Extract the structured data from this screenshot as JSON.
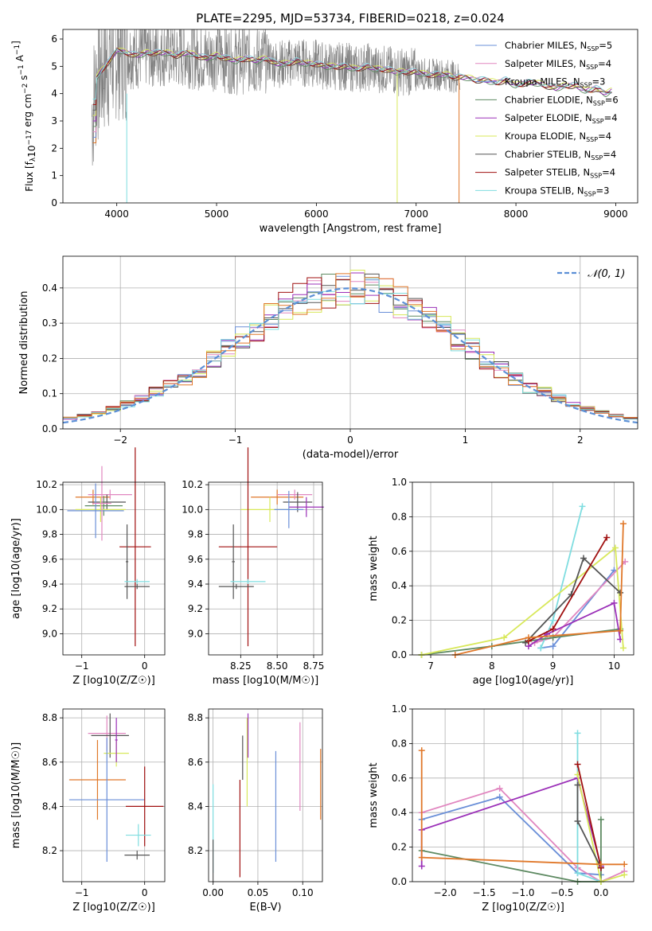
{
  "title": "PLATE=2295, MJD=53734, FIBERID=0218, z=0.024",
  "colors": {
    "blue": "#6a8fd8",
    "pink": "#e187c0",
    "steel": "#6a8fd8",
    "green": "#5e8a62",
    "purple": "#9b30b8",
    "yellow": "#d8e85a",
    "darkgrey": "#555555",
    "red": "#a01010",
    "cyan": "#7fdde0",
    "orange": "#e0782a",
    "grey": "#808080",
    "dashed": "#5b8fd6"
  },
  "chart_data": [
    {
      "id": "spectrum",
      "type": "line",
      "xlabel": "wavelength [Angstrom, rest frame]",
      "ylabel": "Flux [f_λ 10^-17 erg cm^-2 s^-1 A^-1]",
      "xlim": [
        3460,
        9220
      ],
      "ylim": [
        0,
        6.35
      ],
      "xticks": [
        "4000",
        "5000",
        "6000",
        "7000",
        "8000",
        "9000"
      ],
      "yticks": [
        "0",
        "1",
        "2",
        "3",
        "4",
        "5",
        "6"
      ],
      "legend_position": "right",
      "legend": [
        {
          "name": "Chabrier MILES, N_SSP=5",
          "color": "#6a8fd8"
        },
        {
          "name": "Salpeter MILES, N_SSP=4",
          "color": "#e187c0"
        },
        {
          "name": "Kroupa MILES, N_SSP=3",
          "color": "#6a8fd8"
        },
        {
          "name": "Chabrier ELODIE, N_SSP=6",
          "color": "#5e8a62"
        },
        {
          "name": "Salpeter ELODIE, N_SSP=4",
          "color": "#9b30b8"
        },
        {
          "name": "Kroupa ELODIE, N_SSP=4",
          "color": "#d8e85a"
        },
        {
          "name": "Chabrier STELIB, N_SSP=4",
          "color": "#555555"
        },
        {
          "name": "Salpeter STELIB, N_SSP=4",
          "color": "#a01010"
        },
        {
          "name": "Kroupa STELIB, N_SSP=3",
          "color": "#7fdde0"
        }
      ],
      "model_curve": {
        "x": [
          3750,
          3800,
          3900,
          3950,
          4000,
          4100,
          4200,
          4300,
          4400,
          4500,
          4600,
          4700,
          4800,
          4900,
          5000,
          5100,
          5200,
          5300,
          5400,
          5500,
          5600,
          5700,
          5800,
          5900,
          6000,
          6100,
          6200,
          6300,
          6400,
          6500,
          6600,
          6700,
          6800,
          6900,
          7000,
          7100,
          7200,
          7300,
          7400,
          7500,
          7600,
          7700,
          7800,
          7900,
          8000,
          8100,
          8200,
          8300,
          8400,
          8500,
          8600,
          8700,
          8800,
          8900,
          8960
        ],
        "y": [
          3.2,
          4.6,
          5.1,
          5.3,
          5.6,
          5.5,
          5.4,
          5.5,
          5.5,
          5.5,
          5.4,
          5.5,
          5.4,
          5.3,
          5.4,
          5.3,
          5.2,
          5.3,
          5.2,
          5.3,
          5.1,
          5.1,
          5.2,
          5.1,
          5.1,
          5.0,
          5.0,
          5.0,
          4.9,
          5.0,
          4.9,
          4.9,
          4.8,
          4.8,
          4.8,
          4.7,
          4.7,
          4.7,
          4.6,
          4.6,
          4.5,
          4.5,
          4.4,
          4.5,
          4.3,
          4.4,
          4.4,
          4.3,
          4.2,
          4.3,
          4.3,
          4.1,
          4.2,
          4.0,
          4.1
        ]
      }
    },
    {
      "id": "residuals",
      "type": "histogram",
      "xlabel": "(data-model)/error",
      "ylabel": "Normed distribution",
      "xlim": [
        -2.5,
        2.5
      ],
      "ylim": [
        0,
        0.49
      ],
      "xticks": [
        "−2",
        "−1",
        "0",
        "1",
        "2"
      ],
      "yticks": [
        "0.0",
        "0.1",
        "0.2",
        "0.3",
        "0.4"
      ],
      "legend": [
        {
          "name": "𝒩(0, 1)",
          "style": "dashed"
        }
      ],
      "legend_position": "top-right",
      "gaussian": {
        "mu": 0,
        "sigma": 1
      }
    },
    {
      "id": "age_vs_Z",
      "type": "errorbar",
      "xlabel": "Z [log10(Z/Z☉)]",
      "ylabel": "age  [log10(age/yr)]",
      "xlim": [
        -1.3,
        0.32
      ],
      "ylim": [
        8.83,
        10.22
      ],
      "xticks": [
        "−1",
        "0"
      ],
      "yticks": [
        "9.0",
        "9.2",
        "9.4",
        "9.6",
        "9.8",
        "10.0",
        "10.2"
      ],
      "points": [
        {
          "x": -0.82,
          "y": 10.1,
          "xerr": 0.28,
          "yerr": 0.06,
          "color": "#e0782a"
        },
        {
          "x": -0.55,
          "y": 10.12,
          "xerr": 0.35,
          "yerr": 0.04,
          "color": "#e187c0"
        },
        {
          "x": -0.6,
          "y": 10.06,
          "xerr": 0.3,
          "yerr": 0.06,
          "color": "#555555"
        },
        {
          "x": -0.65,
          "y": 10.03,
          "xerr": 0.3,
          "yerr": 0.08,
          "color": "#5e8a62"
        },
        {
          "x": -0.7,
          "y": 10.0,
          "xerr": 0.4,
          "yerr": 0.1,
          "color": "#d8e85a"
        },
        {
          "x": -0.78,
          "y": 9.99,
          "xerr": 0.45,
          "yerr": 0.22,
          "color": "#6a8fd8"
        },
        {
          "x": -0.68,
          "y": 10.05,
          "xerr": 0.15,
          "yerr": 0.3,
          "color": "#e187c0"
        },
        {
          "x": -0.15,
          "y": 9.7,
          "xerr": 0.25,
          "yerr": 0.8,
          "color": "#a01010"
        },
        {
          "x": -0.28,
          "y": 9.58,
          "xerr": 0.02,
          "yerr": 0.3,
          "color": "#555555"
        },
        {
          "x": -0.12,
          "y": 9.42,
          "xerr": 0.2,
          "yerr": 0.02,
          "color": "#7fdde0"
        },
        {
          "x": -0.12,
          "y": 9.38,
          "xerr": 0.2,
          "yerr": 0.02,
          "color": "#555555"
        }
      ]
    },
    {
      "id": "age_vs_mass",
      "type": "errorbar",
      "xlabel": "mass [log10(M/M☉)]",
      "ylabel": "",
      "xlim": [
        8.03,
        8.81
      ],
      "ylim": [
        8.83,
        10.22
      ],
      "xticks": [
        "8.25",
        "8.50",
        "8.75"
      ],
      "yticks": [
        "9.0",
        "9.2",
        "9.4",
        "9.6",
        "9.8",
        "10.0",
        "10.2"
      ],
      "points": [
        {
          "x": 8.5,
          "y": 10.1,
          "xerr": 0.18,
          "yerr": 0.06,
          "color": "#e0782a"
        },
        {
          "x": 8.62,
          "y": 10.12,
          "xerr": 0.12,
          "yerr": 0.04,
          "color": "#e187c0"
        },
        {
          "x": 8.64,
          "y": 10.06,
          "xerr": 0.1,
          "yerr": 0.08,
          "color": "#555555"
        },
        {
          "x": 8.7,
          "y": 10.02,
          "xerr": 0.12,
          "yerr": 0.08,
          "color": "#9b30b8"
        },
        {
          "x": 8.45,
          "y": 10.0,
          "xerr": 0.2,
          "yerr": 0.1,
          "color": "#d8e85a"
        },
        {
          "x": 8.58,
          "y": 10.0,
          "xerr": 0.1,
          "yerr": 0.15,
          "color": "#6a8fd8"
        },
        {
          "x": 8.3,
          "y": 9.7,
          "xerr": 0.2,
          "yerr": 0.8,
          "color": "#a01010"
        },
        {
          "x": 8.2,
          "y": 9.58,
          "xerr": 0.01,
          "yerr": 0.3,
          "color": "#555555"
        },
        {
          "x": 8.22,
          "y": 9.38,
          "xerr": 0.12,
          "yerr": 0.02,
          "color": "#555555"
        },
        {
          "x": 8.3,
          "y": 9.42,
          "xerr": 0.12,
          "yerr": 0.02,
          "color": "#7fdde0"
        }
      ]
    },
    {
      "id": "mass_weight_vs_age",
      "type": "line",
      "xlabel": "age  [log10(age/yr)]",
      "ylabel": "mass weight",
      "xlim": [
        6.7,
        10.32
      ],
      "ylim": [
        0,
        1.0
      ],
      "xticks": [
        "7",
        "8",
        "9",
        "10"
      ],
      "yticks": [
        "0.0",
        "0.2",
        "0.4",
        "0.6",
        "0.8",
        "1.0"
      ],
      "series": [
        {
          "color": "#6a8fd8",
          "x": [
            8.8,
            9.0,
            10.0
          ],
          "y": [
            0.04,
            0.05,
            0.49
          ]
        },
        {
          "color": "#e187c0",
          "x": [
            8.7,
            9.0,
            10.18
          ],
          "y": [
            0.07,
            0.1,
            0.54
          ]
        },
        {
          "color": "#7fdde0",
          "x": [
            8.8,
            9.0,
            9.48
          ],
          "y": [
            0.04,
            0.2,
            0.86
          ]
        },
        {
          "color": "#5e8a62",
          "x": [
            6.85,
            8.0,
            9.0,
            10.1
          ],
          "y": [
            0.0,
            0.05,
            0.1,
            0.15
          ]
        },
        {
          "color": "#9b30b8",
          "x": [
            8.6,
            8.9,
            10.0,
            10.1
          ],
          "y": [
            0.05,
            0.12,
            0.3,
            0.09
          ]
        },
        {
          "color": "#d8e85a",
          "x": [
            6.85,
            8.2,
            10.02,
            10.15
          ],
          "y": [
            0.0,
            0.1,
            0.62,
            0.04
          ]
        },
        {
          "color": "#555555",
          "x": [
            8.55,
            9.3,
            9.5,
            10.1
          ],
          "y": [
            0.07,
            0.35,
            0.56,
            0.36
          ]
        },
        {
          "color": "#a01010",
          "x": [
            8.6,
            9.0,
            9.88
          ],
          "y": [
            0.08,
            0.15,
            0.68
          ]
        },
        {
          "color": "#e0782a",
          "x": [
            7.4,
            8.6,
            10.1,
            10.15
          ],
          "y": [
            0.0,
            0.1,
            0.14,
            0.76
          ]
        }
      ]
    },
    {
      "id": "mass_vs_Z",
      "type": "errorbar",
      "xlabel": "Z [log10(Z/Z☉)]",
      "ylabel": "mass [log10(M/M☉)]",
      "xlim": [
        -1.3,
        0.32
      ],
      "ylim": [
        8.06,
        8.84
      ],
      "xticks": [
        "−1",
        "0"
      ],
      "yticks": [
        "8.2",
        "8.4",
        "8.6",
        "8.8"
      ],
      "points": [
        {
          "x": -0.6,
          "y": 8.73,
          "xerr": 0.3,
          "yerr": 0.08,
          "color": "#e187c0"
        },
        {
          "x": -0.55,
          "y": 8.72,
          "xerr": 0.3,
          "yerr": 0.1,
          "color": "#555555"
        },
        {
          "x": -0.45,
          "y": 8.64,
          "xerr": 0.2,
          "yerr": 0.06,
          "color": "#d8e85a"
        },
        {
          "x": -0.75,
          "y": 8.52,
          "xerr": 0.45,
          "yerr": 0.18,
          "color": "#e0782a"
        },
        {
          "x": -0.6,
          "y": 8.43,
          "xerr": 0.6,
          "yerr": 0.28,
          "color": "#6a8fd8"
        },
        {
          "x": 0.0,
          "y": 8.4,
          "xerr": 0.3,
          "yerr": 0.18,
          "color": "#a01010"
        },
        {
          "x": -0.1,
          "y": 8.27,
          "xerr": 0.2,
          "yerr": 0.05,
          "color": "#7fdde0"
        },
        {
          "x": -0.12,
          "y": 8.18,
          "xerr": 0.2,
          "yerr": 0.02,
          "color": "#555555"
        },
        {
          "x": -0.45,
          "y": 8.7,
          "xerr": 0.02,
          "yerr": 0.1,
          "color": "#9b30b8"
        }
      ]
    },
    {
      "id": "mass_vs_ebv",
      "type": "errorbar",
      "xlabel": "E(B-V)",
      "ylabel": "",
      "xlim": [
        -0.005,
        0.122
      ],
      "ylim": [
        8.06,
        8.84
      ],
      "xticks": [
        "0.00",
        "0.05",
        "0.10"
      ],
      "yticks": [
        "8.2",
        "8.4",
        "8.6",
        "8.8"
      ],
      "points": [
        {
          "x": 0.0,
          "y": 8.3,
          "xerr": 0,
          "yerr": 0.2,
          "color": "#7fdde0"
        },
        {
          "x": 0.0,
          "y": 8.15,
          "xerr": 0,
          "yerr": 0.1,
          "color": "#555555"
        },
        {
          "x": 0.03,
          "y": 8.3,
          "xerr": 0,
          "yerr": 0.22,
          "color": "#a01010"
        },
        {
          "x": 0.033,
          "y": 8.62,
          "xerr": 0,
          "yerr": 0.1,
          "color": "#555555"
        },
        {
          "x": 0.038,
          "y": 8.6,
          "xerr": 0,
          "yerr": 0.2,
          "color": "#d8e85a"
        },
        {
          "x": 0.039,
          "y": 8.72,
          "xerr": 0,
          "yerr": 0.1,
          "color": "#9b30b8"
        },
        {
          "x": 0.07,
          "y": 8.4,
          "xerr": 0,
          "yerr": 0.25,
          "color": "#6a8fd8"
        },
        {
          "x": 0.097,
          "y": 8.58,
          "xerr": 0,
          "yerr": 0.2,
          "color": "#e187c0"
        },
        {
          "x": 0.12,
          "y": 8.5,
          "xerr": 0,
          "yerr": 0.16,
          "color": "#e0782a"
        }
      ]
    },
    {
      "id": "mass_weight_vs_Z",
      "type": "line",
      "xlabel": "Z [log10(Z/Z☉)]",
      "ylabel": "mass weight",
      "xlim": [
        -2.42,
        0.42
      ],
      "ylim": [
        0,
        1.0
      ],
      "xticks": [
        "−2.0",
        "−1.5",
        "−1.0",
        "−0.5",
        "0.0"
      ],
      "yticks": [
        "0.0",
        "0.2",
        "0.4",
        "0.6",
        "0.8",
        "1.0"
      ],
      "series": [
        {
          "color": "#6a8fd8",
          "x": [
            -2.3,
            -1.3,
            -0.3,
            0.0
          ],
          "y": [
            0.36,
            0.49,
            0.05,
            0.04
          ]
        },
        {
          "color": "#e187c0",
          "x": [
            -2.3,
            -1.3,
            -0.3,
            0.0,
            0.3
          ],
          "y": [
            0.4,
            0.54,
            0.08,
            0.0,
            0.06
          ]
        },
        {
          "color": "#7fdde0",
          "x": [
            -0.3,
            -0.3,
            0.0
          ],
          "y": [
            0.86,
            0.05,
            0.0
          ]
        },
        {
          "color": "#5e8a62",
          "x": [
            -2.3,
            -0.3,
            0.0,
            0.0
          ],
          "y": [
            0.18,
            0.0,
            0.0,
            0.36
          ]
        },
        {
          "color": "#9b30b8",
          "x": [
            -2.3,
            -2.3,
            -0.3,
            0.0
          ],
          "y": [
            0.09,
            0.3,
            0.6,
            0.09
          ]
        },
        {
          "color": "#d8e85a",
          "x": [
            -0.3,
            0.0,
            0.3
          ],
          "y": [
            0.62,
            0.0,
            0.04
          ]
        },
        {
          "color": "#555555",
          "x": [
            -0.3,
            -0.3,
            0.0
          ],
          "y": [
            0.56,
            0.35,
            0.08
          ]
        },
        {
          "color": "#a01010",
          "x": [
            -0.3,
            0.0
          ],
          "y": [
            0.68,
            0.08
          ]
        },
        {
          "color": "#e0782a",
          "x": [
            -2.3,
            -2.3,
            0.0,
            0.3
          ],
          "y": [
            0.76,
            0.14,
            0.1,
            0.1
          ]
        }
      ]
    }
  ]
}
